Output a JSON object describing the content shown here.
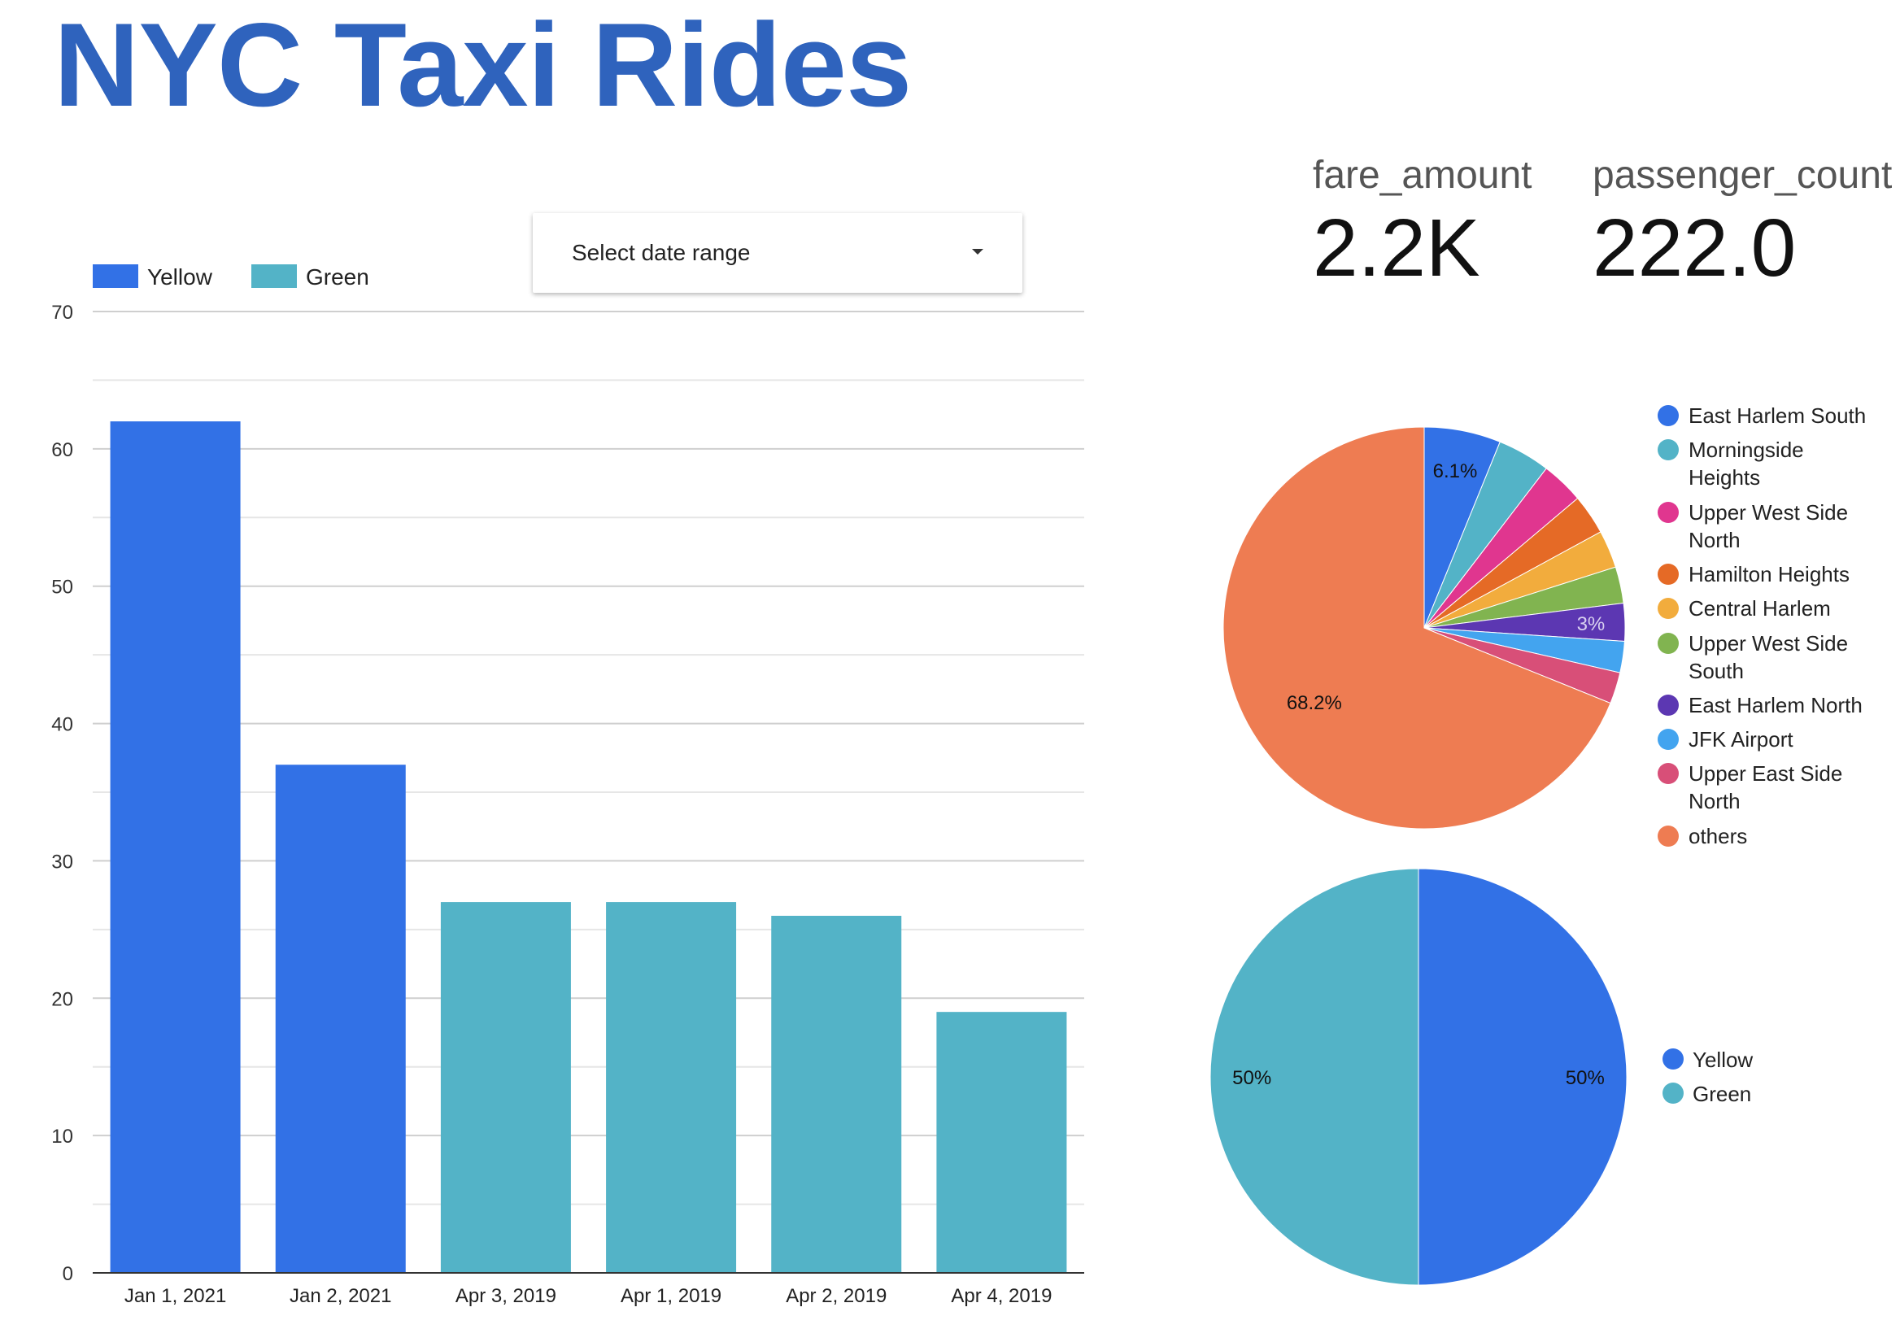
{
  "title": "NYC Taxi Rides",
  "date_picker": {
    "label": "Select date range"
  },
  "scorecards": [
    {
      "label": "fare_amount",
      "value": "2.2K"
    },
    {
      "label": "passenger_count",
      "value": "222.0"
    }
  ],
  "chart_data": [
    {
      "type": "bar",
      "categories": [
        "Jan 1, 2021",
        "Jan 2, 2021",
        "Apr 3, 2019",
        "Apr 1, 2019",
        "Apr 2, 2019",
        "Apr 4, 2019"
      ],
      "values": [
        62,
        37,
        27,
        27,
        26,
        19
      ],
      "bar_series": [
        "Yellow",
        "Yellow",
        "Green",
        "Green",
        "Green",
        "Green"
      ],
      "legend": [
        {
          "name": "Yellow",
          "color": "#3271e6"
        },
        {
          "name": "Green",
          "color": "#53b3c7"
        }
      ],
      "legend_position": "top-left",
      "ylim": [
        0,
        70
      ],
      "yticks": [
        0,
        10,
        20,
        30,
        40,
        50,
        60,
        70
      ],
      "grid": true
    },
    {
      "type": "pie",
      "labels": [
        "East Harlem South",
        "Morningside Heights",
        "Upper West Side North",
        "Hamilton Heights",
        "Central Harlem",
        "Upper West Side South",
        "East Harlem North",
        "JFK Airport",
        "Upper East Side North",
        "others"
      ],
      "legend_lines": [
        [
          "East Harlem South"
        ],
        [
          "Morningside",
          "Heights"
        ],
        [
          "Upper West Side",
          "North"
        ],
        [
          "Hamilton Heights"
        ],
        [
          "Central Harlem"
        ],
        [
          "Upper West Side",
          "South"
        ],
        [
          "East Harlem North"
        ],
        [
          "JFK Airport"
        ],
        [
          "Upper East Side",
          "North"
        ],
        [
          "others"
        ]
      ],
      "values": [
        6.1,
        4.2,
        3.4,
        3.2,
        3.0,
        2.9,
        3.0,
        2.5,
        2.5,
        68.2
      ],
      "colors": [
        "#3271e6",
        "#53b3c7",
        "#e0368f",
        "#e56a26",
        "#f2ac3d",
        "#81b450",
        "#5c37b2",
        "#43a4ef",
        "#d84f78",
        "#ee7c52"
      ],
      "slice_labels": [
        "6.1%",
        "",
        "",
        "",
        "",
        "",
        "3%",
        "",
        "",
        "68.2%"
      ],
      "legend_position": "right"
    },
    {
      "type": "pie",
      "labels": [
        "Yellow",
        "Green"
      ],
      "values": [
        50,
        50
      ],
      "colors": [
        "#3271e6",
        "#53b3c7"
      ],
      "slice_labels": [
        "50%",
        "50%"
      ],
      "legend_position": "right"
    }
  ]
}
